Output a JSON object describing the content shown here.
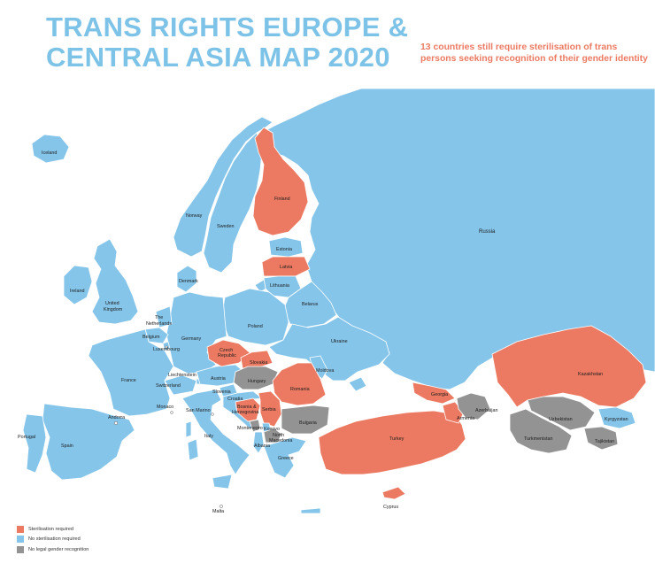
{
  "title": {
    "line1": "TRANS RIGHTS EUROPE &",
    "line2": "CENTRAL ASIA MAP 2020"
  },
  "subtitle": {
    "line1": "13 countries still require sterilisation of trans",
    "line2": "persons seeking recognition of their gender identity"
  },
  "colors": {
    "sterilisation": "#ec7a62",
    "no_sterilisation": "#85c5ea",
    "no_recognition": "#939393",
    "border": "#ffffff"
  },
  "legend": [
    {
      "label": "Sterilisation required",
      "color": "#ec7a62"
    },
    {
      "label": "No sterilisation required",
      "color": "#85c5ea"
    },
    {
      "label": "No legal gender recognition",
      "color": "#939393"
    }
  ],
  "countries": {
    "iceland": "Iceland",
    "ireland": "Ireland",
    "uk_1": "United",
    "uk_2": "Kingdom",
    "norway": "Norway",
    "sweden": "Sweden",
    "finland": "Finland",
    "denmark": "Denmark",
    "estonia": "Estonia",
    "latvia": "Latvia",
    "lithuania": "Lithuania",
    "belarus": "Belarus",
    "russia": "Russia",
    "netherlands_1": "The",
    "netherlands_2": "Netherlands",
    "belgium": "Belgium",
    "luxembourg": "Luxembourg",
    "germany": "Germany",
    "poland": "Poland",
    "ukraine": "Ukraine",
    "czech_1": "Czech",
    "czech_2": "Republic",
    "slovakia": "Slovakia",
    "france": "France",
    "liechtenstein": "Liechtenstein",
    "austria": "Austria",
    "switzerland": "Switzerland",
    "hungary": "Hungary",
    "moldova": "Moldova",
    "romania": "Romania",
    "slovenia": "Slovenia",
    "croatia": "Croatia",
    "bosnia_1": "Bosnia &",
    "bosnia_2": "Herzegovina",
    "serbia": "Serbia",
    "kosovo": "Kosovo",
    "montenegro": "Montenegro",
    "north_macedonia_1": "North",
    "north_macedonia_2": "Macedonia",
    "albania": "Albania",
    "bulgaria": "Bulgaria",
    "greece": "Greece",
    "monaco": "Monaco",
    "san_marino": "San Marino",
    "andorra": "Andorra",
    "portugal": "Portugal",
    "spain": "Spain",
    "italy": "Italy",
    "malta": "Malta",
    "turkey": "Turkey",
    "cyprus": "Cyprus",
    "georgia": "Georgia",
    "armenia": "Armenia",
    "azerbaijan": "Azerbaijan",
    "kazakhstan": "Kazakhstan",
    "uzbekistan": "Uzbekistan",
    "turkmenistan": "Turkmenistan",
    "kyrgyzstan": "Kyrgyzstan",
    "tajikistan": "Tajikistan"
  }
}
